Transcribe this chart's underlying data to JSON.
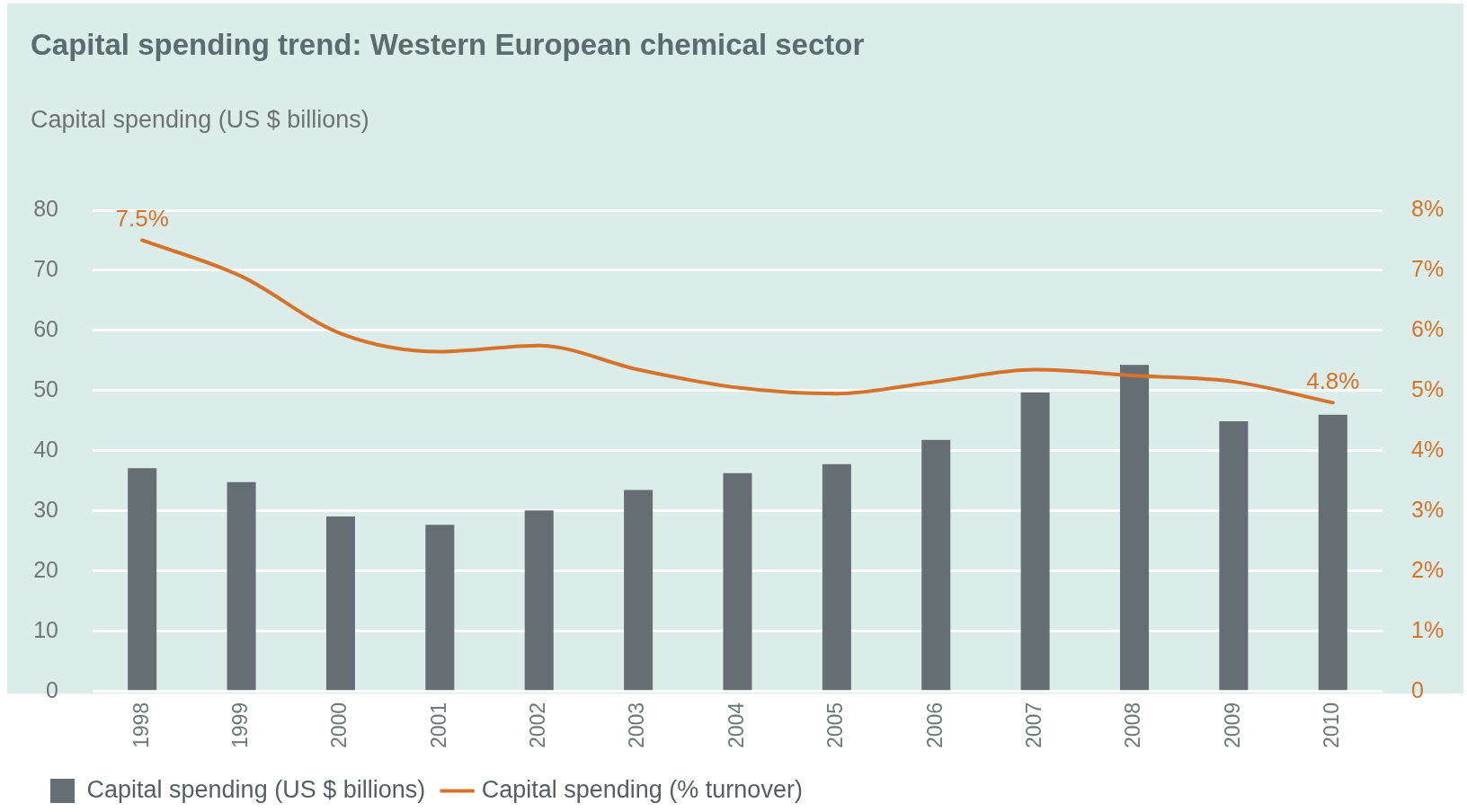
{
  "chart_data": {
    "type": "bar",
    "title": "Capital spending trend: Western European chemical sector",
    "ylabel": "Capital spending (US $ billions)",
    "categories": [
      "1998",
      "1999",
      "2000",
      "2001",
      "2002",
      "2003",
      "2004",
      "2005",
      "2006",
      "2007",
      "2008",
      "2009",
      "2010"
    ],
    "series": [
      {
        "name": "Capital spending (US $ billions)",
        "color": "#646e73",
        "values": [
          37.1,
          34.8,
          29.1,
          27.7,
          30.1,
          33.5,
          36.3,
          37.8,
          41.8,
          49.7,
          54.3,
          44.9,
          46.0
        ]
      },
      {
        "name": "Capital spending (% turnover)",
        "type": "line",
        "axis": "y2",
        "color": "#d5722b",
        "values": [
          7.5,
          6.9,
          5.95,
          5.65,
          5.75,
          5.35,
          5.05,
          4.95,
          5.15,
          5.35,
          5.25,
          5.15,
          4.8
        ],
        "value_labels": [
          "7.5%",
          null,
          null,
          null,
          null,
          null,
          null,
          null,
          null,
          null,
          null,
          null,
          "4.8%"
        ]
      }
    ],
    "ylim": [
      0,
      80
    ],
    "yticks": [
      0,
      10,
      20,
      30,
      40,
      50,
      60,
      70,
      80
    ],
    "y2lim": [
      0,
      8
    ],
    "y2ticks": [
      0,
      {
        "value": 1,
        "label": "1%"
      },
      {
        "value": 2,
        "label": "2%"
      },
      {
        "value": 3,
        "label": "3%"
      },
      {
        "value": 4,
        "label": "4%"
      },
      {
        "value": 5,
        "label": "5%"
      },
      {
        "value": 6,
        "label": "6%"
      },
      {
        "value": 7,
        "label": "7%"
      },
      {
        "value": 8,
        "label": "8%"
      }
    ],
    "grid": "y",
    "legend": "bottom"
  }
}
